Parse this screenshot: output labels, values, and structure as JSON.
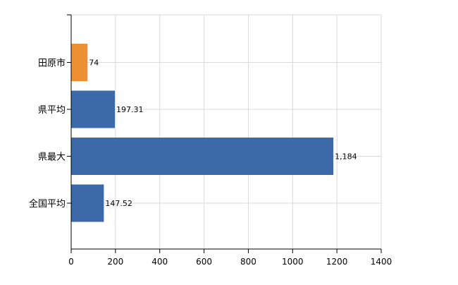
{
  "chart_data": {
    "type": "bar",
    "orientation": "horizontal",
    "title": "",
    "xlabel": "",
    "ylabel": "",
    "categories": [
      "田原市",
      "県平均",
      "県最大",
      "全国平均"
    ],
    "values": [
      74,
      197.31,
      1184,
      147.52
    ],
    "value_labels": [
      "74",
      "197.31",
      "1,184",
      "147.52"
    ],
    "bar_colors": [
      "#ee8f33",
      "#3c6aa8",
      "#3c6aa8",
      "#3c6aa8"
    ],
    "xlim": [
      0,
      1400
    ],
    "x_ticks": [
      0,
      200,
      400,
      600,
      800,
      1000,
      1200,
      1400
    ],
    "x_tick_labels": [
      "0",
      "200",
      "400",
      "600",
      "800",
      "1000",
      "1200",
      "1400"
    ],
    "grid": true,
    "legend": "none",
    "colors": {
      "highlight": "#ee8f33",
      "primary": "#3c6aa8",
      "grid": "#d9d9d9",
      "axis": "#000000"
    }
  }
}
